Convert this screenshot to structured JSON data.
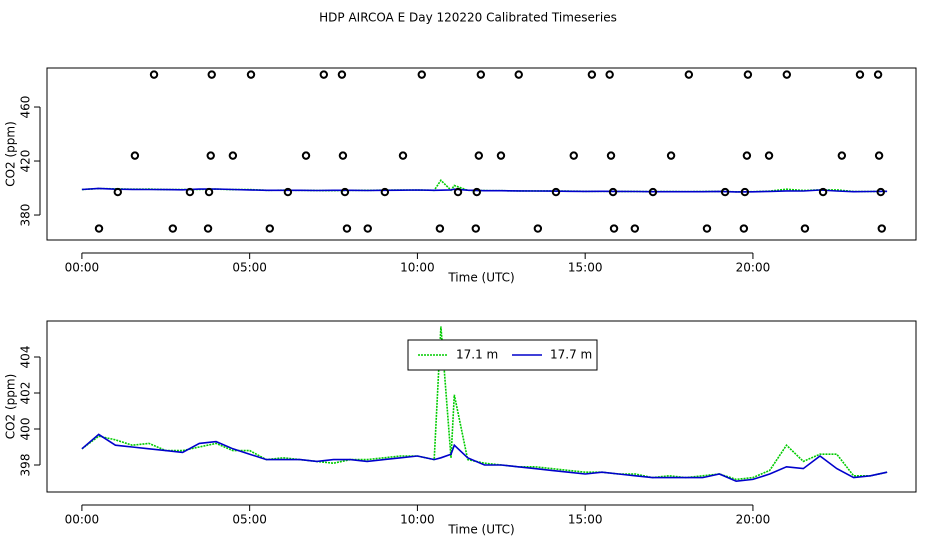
{
  "chart_data": [
    {
      "type": "line",
      "title": "HDP AIRCOA E  Day 120220  Calibrated Timeseries",
      "xlabel": "Time (UTC)",
      "ylabel": "CO2 (ppm)",
      "xlim": [
        -1.04,
        24.86
      ],
      "ylim": [
        361.5,
        488.9
      ],
      "xticks": [
        {
          "value": 0,
          "label": "00:00"
        },
        {
          "value": 5,
          "label": "05:00"
        },
        {
          "value": 10,
          "label": "10:00"
        },
        {
          "value": 15,
          "label": "15:00"
        },
        {
          "value": 20,
          "label": "20:00"
        }
      ],
      "yticks": [
        380,
        420,
        460
      ],
      "x": [
        0,
        0.5,
        1,
        1.5,
        2,
        2.5,
        3,
        3.5,
        4,
        4.5,
        5,
        5.5,
        6,
        6.5,
        7,
        7.5,
        8,
        8.5,
        9,
        9.5,
        10,
        10.5,
        10.7,
        11,
        11.1,
        11.5,
        12,
        12.5,
        13,
        13.5,
        14,
        14.5,
        15,
        15.5,
        16,
        16.5,
        17,
        17.5,
        18,
        18.5,
        19,
        19.5,
        20,
        20.5,
        21,
        21.5,
        22,
        22.5,
        23,
        23.5,
        24
      ],
      "series": [
        {
          "color": "#00cc00",
          "linestyle": "dotted",
          "values": [
            398.9,
            399.6,
            399.4,
            399.1,
            399.2,
            398.8,
            398.8,
            399.0,
            399.2,
            398.8,
            398.8,
            398.3,
            398.4,
            398.3,
            398.2,
            398.1,
            398.3,
            398.3,
            398.4,
            398.5,
            398.5,
            398.3,
            405.7,
            398.4,
            401.9,
            398.3,
            398.1,
            398.0,
            397.9,
            397.9,
            397.8,
            397.7,
            397.6,
            397.6,
            397.5,
            397.5,
            397.3,
            397.4,
            397.3,
            397.4,
            397.5,
            397.2,
            397.3,
            397.7,
            399.1,
            398.2,
            398.6,
            398.6,
            397.4,
            397.4,
            397.6
          ]
        },
        {
          "color": "#0000cc",
          "linestyle": "solid",
          "values": [
            398.9,
            399.7,
            399.1,
            399.0,
            398.9,
            398.8,
            398.7,
            399.2,
            399.3,
            398.9,
            398.6,
            398.3,
            398.3,
            398.3,
            398.2,
            398.3,
            398.3,
            398.2,
            398.3,
            398.4,
            398.5,
            398.3,
            398.4,
            398.6,
            399.1,
            398.4,
            398.0,
            398.0,
            397.9,
            397.8,
            397.7,
            397.6,
            397.5,
            397.6,
            397.5,
            397.4,
            397.3,
            397.3,
            397.3,
            397.3,
            397.5,
            397.1,
            397.2,
            397.5,
            397.9,
            397.8,
            398.5,
            397.8,
            397.3,
            397.4,
            397.6
          ]
        },
        {
          "type": "scatter",
          "color": "#000000",
          "x": [
            2.15,
            3.87,
            5.04,
            7.21,
            7.75,
            10.13,
            11.89,
            13.02,
            15.2,
            15.73,
            18.09,
            19.85,
            21.01,
            23.19,
            23.73,
            1.58,
            3.84,
            4.5,
            6.68,
            7.78,
            9.57,
            11.83,
            12.49,
            14.66,
            15.77,
            17.56,
            19.82,
            20.48,
            22.65,
            23.76,
            1.07,
            3.22,
            3.79,
            6.14,
            7.84,
            9.03,
            11.21,
            11.77,
            14.13,
            15.83,
            17.02,
            19.17,
            19.76,
            22.09,
            23.81,
            0.51,
            2.71,
            3.76,
            5.6,
            7.9,
            8.52,
            10.67,
            11.74,
            13.59,
            15.86,
            16.48,
            18.63,
            19.73,
            21.55,
            23.84
          ],
          "values": [
            484,
            484,
            484,
            484,
            484,
            484,
            484,
            484,
            484,
            484,
            484,
            484,
            484,
            484,
            484,
            424,
            424,
            424,
            424,
            424,
            424,
            424,
            424,
            424,
            424,
            424,
            424,
            424,
            424,
            424,
            397,
            397,
            397,
            397,
            397,
            397,
            397,
            397,
            397,
            397,
            397,
            397,
            397,
            397,
            397,
            370,
            370,
            370,
            370,
            370,
            370,
            370,
            370,
            370,
            370,
            370,
            370,
            370,
            370,
            370
          ]
        }
      ]
    },
    {
      "type": "line",
      "xlabel": "Time (UTC)",
      "ylabel": "CO2 (ppm)",
      "legend": "top",
      "xlim": [
        -1.04,
        24.86
      ],
      "ylim": [
        396.5,
        406
      ],
      "xticks": [
        {
          "value": 0,
          "label": "00:00"
        },
        {
          "value": 5,
          "label": "05:00"
        },
        {
          "value": 10,
          "label": "10:00"
        },
        {
          "value": 15,
          "label": "15:00"
        },
        {
          "value": 20,
          "label": "20:00"
        }
      ],
      "yticks": [
        398,
        400,
        402,
        404
      ],
      "x": [
        0,
        0.5,
        1,
        1.5,
        2,
        2.5,
        3,
        3.5,
        4,
        4.5,
        5,
        5.5,
        6,
        6.5,
        7,
        7.5,
        8,
        8.5,
        9,
        9.5,
        10,
        10.5,
        10.7,
        11,
        11.1,
        11.5,
        12,
        12.5,
        13,
        13.5,
        14,
        14.5,
        15,
        15.5,
        16,
        16.5,
        17,
        17.5,
        18,
        18.5,
        19,
        19.5,
        20,
        20.5,
        21,
        21.5,
        22,
        22.5,
        23,
        23.5,
        24
      ],
      "series": [
        {
          "name": "17.1 m",
          "color": "#00cc00",
          "linestyle": "dotted",
          "values": [
            398.9,
            399.6,
            399.4,
            399.1,
            399.2,
            398.8,
            398.8,
            399.0,
            399.2,
            398.8,
            398.8,
            398.3,
            398.4,
            398.3,
            398.2,
            398.1,
            398.3,
            398.3,
            398.4,
            398.5,
            398.5,
            398.3,
            405.7,
            398.4,
            401.9,
            398.3,
            398.1,
            398.0,
            397.9,
            397.9,
            397.8,
            397.7,
            397.6,
            397.6,
            397.5,
            397.5,
            397.3,
            397.4,
            397.3,
            397.4,
            397.5,
            397.2,
            397.3,
            397.7,
            399.1,
            398.2,
            398.6,
            398.6,
            397.4,
            397.4,
            397.6
          ]
        },
        {
          "name": "17.7 m",
          "color": "#0000cc",
          "linestyle": "solid",
          "values": [
            398.9,
            399.7,
            399.1,
            399.0,
            398.9,
            398.8,
            398.7,
            399.2,
            399.3,
            398.9,
            398.6,
            398.3,
            398.3,
            398.3,
            398.2,
            398.3,
            398.3,
            398.2,
            398.3,
            398.4,
            398.5,
            398.3,
            398.4,
            398.6,
            399.1,
            398.4,
            398.0,
            398.0,
            397.9,
            397.8,
            397.7,
            397.6,
            397.5,
            397.6,
            397.5,
            397.4,
            397.3,
            397.3,
            397.3,
            397.3,
            397.5,
            397.1,
            397.2,
            397.5,
            397.9,
            397.8,
            398.5,
            397.8,
            397.3,
            397.4,
            397.6
          ]
        }
      ]
    }
  ]
}
